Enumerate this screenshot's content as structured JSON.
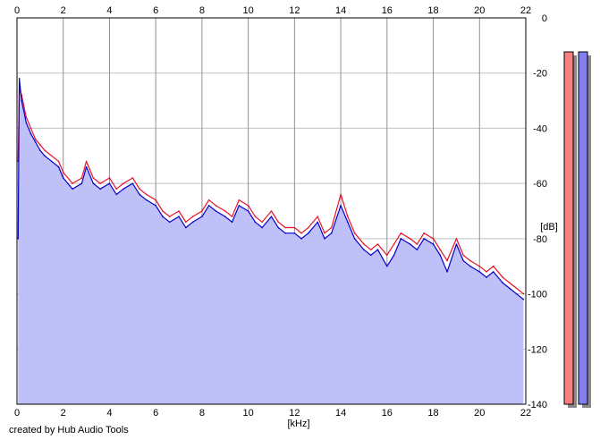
{
  "chart_data": {
    "type": "area",
    "xlabel": "[kHz]",
    "ylabel": "[dB]",
    "xlim": [
      0,
      22
    ],
    "ylim": [
      -140,
      0
    ],
    "x_ticks": [
      "0",
      "2",
      "4",
      "6",
      "8",
      "10",
      "12",
      "14",
      "16",
      "18",
      "20",
      "22"
    ],
    "y_ticks": [
      "0",
      "-20",
      "-40",
      "-60",
      "-80",
      "-100",
      "-120",
      "-140"
    ],
    "grid": true,
    "series": [
      {
        "color": "#e8112d",
        "x": [
          0.05,
          0.1,
          0.2,
          0.4,
          0.6,
          0.8,
          1.0,
          1.2,
          1.5,
          1.8,
          2.0,
          2.4,
          2.8,
          3.0,
          3.3,
          3.6,
          4.0,
          4.3,
          4.6,
          5.0,
          5.3,
          5.6,
          6.0,
          6.3,
          6.6,
          7.0,
          7.3,
          7.6,
          8.0,
          8.3,
          8.6,
          9.0,
          9.3,
          9.6,
          10.0,
          10.3,
          10.6,
          11.0,
          11.3,
          11.6,
          12.0,
          12.3,
          12.6,
          13.0,
          13.3,
          13.6,
          14.0,
          14.3,
          14.6,
          15.0,
          15.3,
          15.6,
          16.0,
          16.3,
          16.6,
          17.0,
          17.3,
          17.6,
          18.0,
          18.3,
          18.6,
          19.0,
          19.3,
          19.6,
          20.0,
          20.3,
          20.6,
          21.0,
          21.3,
          21.6,
          21.9
        ],
        "values": [
          -52,
          -26,
          -28,
          -36,
          -40,
          -44,
          -46,
          -48,
          -50,
          -52,
          -56,
          -60,
          -58,
          -52,
          -58,
          -60,
          -58,
          -62,
          -60,
          -58,
          -62,
          -64,
          -66,
          -70,
          -72,
          -70,
          -74,
          -72,
          -70,
          -66,
          -68,
          -70,
          -72,
          -66,
          -68,
          -72,
          -74,
          -70,
          -74,
          -76,
          -76,
          -78,
          -76,
          -72,
          -78,
          -76,
          -64,
          -72,
          -78,
          -82,
          -84,
          -82,
          -86,
          -82,
          -78,
          -80,
          -82,
          -78,
          -80,
          -84,
          -88,
          -80,
          -86,
          -88,
          -90,
          -92,
          -90,
          -94,
          -96,
          -98,
          -100
        ]
      },
      {
        "color": "#0000cc",
        "x": [
          0.05,
          0.1,
          0.2,
          0.4,
          0.6,
          0.8,
          1.0,
          1.2,
          1.5,
          1.8,
          2.0,
          2.4,
          2.8,
          3.0,
          3.3,
          3.6,
          4.0,
          4.3,
          4.6,
          5.0,
          5.3,
          5.6,
          6.0,
          6.3,
          6.6,
          7.0,
          7.3,
          7.6,
          8.0,
          8.3,
          8.6,
          9.0,
          9.3,
          9.6,
          10.0,
          10.3,
          10.6,
          11.0,
          11.3,
          11.6,
          12.0,
          12.3,
          12.6,
          13.0,
          13.3,
          13.6,
          14.0,
          14.3,
          14.6,
          15.0,
          15.3,
          15.6,
          16.0,
          16.3,
          16.6,
          17.0,
          17.3,
          17.6,
          18.0,
          18.3,
          18.6,
          19.0,
          19.3,
          19.6,
          20.0,
          20.3,
          20.6,
          21.0,
          21.3,
          21.6,
          21.9
        ],
        "values": [
          -80,
          -22,
          -30,
          -38,
          -42,
          -45,
          -48,
          -50,
          -52,
          -54,
          -58,
          -62,
          -60,
          -54,
          -60,
          -62,
          -60,
          -64,
          -62,
          -60,
          -64,
          -66,
          -68,
          -72,
          -74,
          -72,
          -76,
          -74,
          -72,
          -68,
          -70,
          -72,
          -74,
          -68,
          -70,
          -74,
          -76,
          -72,
          -76,
          -78,
          -78,
          -80,
          -78,
          -74,
          -80,
          -78,
          -68,
          -74,
          -80,
          -84,
          -86,
          -84,
          -90,
          -86,
          -80,
          -82,
          -84,
          -80,
          -82,
          -86,
          -92,
          -82,
          -88,
          -90,
          -92,
          -94,
          -92,
          -96,
          -98,
          -100,
          -102
        ]
      }
    ],
    "level_meters": [
      {
        "name": "left-level-meter",
        "color": "#f88080",
        "border": "#000000"
      },
      {
        "name": "right-level-meter",
        "color": "#8080f0",
        "border": "#000000"
      }
    ]
  },
  "credit": "created by Hub Audio Tools"
}
